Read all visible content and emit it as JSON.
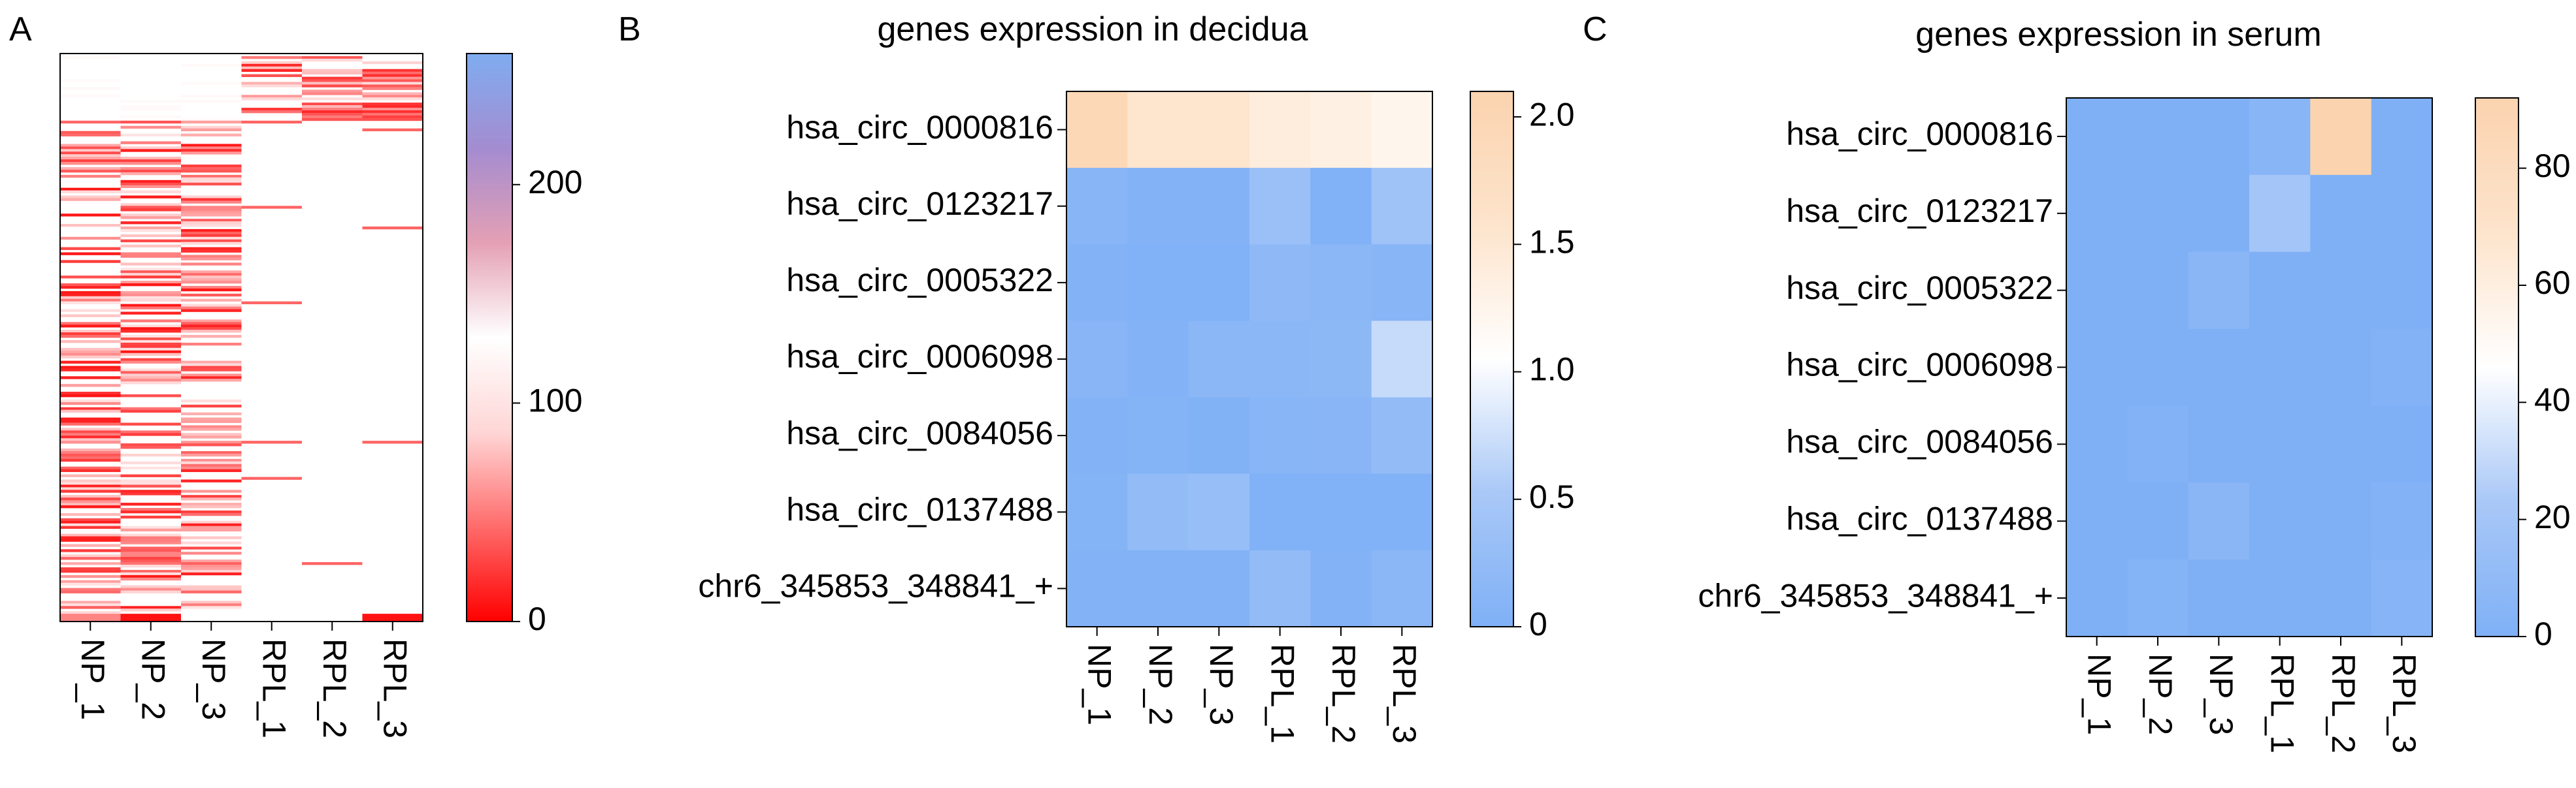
{
  "colors": {
    "panel_a_scale": [
      "#ff0000",
      "#ff6b6b",
      "#ffd6d6",
      "#ffffff",
      "#e4a0b4",
      "#a48cd0",
      "#80acf0"
    ],
    "panel_bc_scale": [
      "#7fb0f6",
      "#a9c8f7",
      "#ffffff",
      "#fde4cc",
      "#fbd3af"
    ],
    "axis": "#000000"
  },
  "chart_data": [
    {
      "type": "heatmap",
      "panel_label": "A",
      "title": "",
      "columns": [
        "NP_1",
        "NP_2",
        "NP_3",
        "RPL_1",
        "RPL_2",
        "RPL_3"
      ],
      "row_count": 220,
      "rows_note": "",
      "colorbar": {
        "min": 0,
        "max": 260,
        "ticks": [
          0,
          100,
          200
        ],
        "low_color": "#ff0000",
        "mid_color": "#ffffff",
        "high_color": "#80acf0"
      },
      "block_pattern": {
        "np_enriched_rows_fraction": [
          0.12,
          1.0
        ],
        "rpl_enriched_rows_fraction": [
          0.0,
          0.12
        ]
      }
    },
    {
      "type": "heatmap",
      "panel_label": "B",
      "title": "genes expression in decidua",
      "columns": [
        "NP_1",
        "NP_2",
        "NP_3",
        "RPL_1",
        "RPL_2",
        "RPL_3"
      ],
      "rows": [
        "hsa_circ_0000816",
        "hsa_circ_0123217",
        "hsa_circ_0005322",
        "hsa_circ_0006098",
        "hsa_circ_0084056",
        "hsa_circ_0137488",
        "chr6_345853_348841_+"
      ],
      "values": [
        [
          1.95,
          1.55,
          1.55,
          1.4,
          1.35,
          1.25
        ],
        [
          0.1,
          0.05,
          0.05,
          0.35,
          0.02,
          0.4
        ],
        [
          0.05,
          0.02,
          0.02,
          0.2,
          0.15,
          0.1
        ],
        [
          0.12,
          0.05,
          0.15,
          0.15,
          0.18,
          0.7
        ],
        [
          0.05,
          0.08,
          0.04,
          0.1,
          0.12,
          0.25
        ],
        [
          0.08,
          0.25,
          0.3,
          0.02,
          0.02,
          0.02
        ],
        [
          0.05,
          0.05,
          0.05,
          0.25,
          0.05,
          0.15
        ]
      ],
      "colorbar": {
        "min": 0,
        "max": 2.1,
        "ticks": [
          0,
          0.5,
          1.0,
          1.5,
          2.0
        ],
        "tick_labels": [
          "0",
          "0.5",
          "1.0",
          "1.5",
          "2.0"
        ]
      }
    },
    {
      "type": "heatmap",
      "panel_label": "C",
      "title": "genes expression in serum",
      "columns": [
        "NP_1",
        "NP_2",
        "NP_3",
        "RPL_1",
        "RPL_2",
        "RPL_3"
      ],
      "rows": [
        "hsa_circ_0000816",
        "hsa_circ_0123217",
        "hsa_circ_0005322",
        "hsa_circ_0006098",
        "hsa_circ_0084056",
        "hsa_circ_0137488",
        "chr6_345853_348841_+"
      ],
      "values": [
        [
          0,
          0,
          0,
          5,
          92,
          0
        ],
        [
          0,
          0,
          0,
          20,
          0,
          0
        ],
        [
          0,
          0,
          6,
          0,
          0,
          0
        ],
        [
          0,
          0,
          0,
          0,
          0,
          2
        ],
        [
          0,
          2,
          0,
          0,
          0,
          0
        ],
        [
          0,
          0,
          6,
          0,
          0,
          2
        ],
        [
          0,
          3,
          0,
          0,
          0,
          4
        ]
      ],
      "colorbar": {
        "min": 0,
        "max": 92,
        "ticks": [
          0,
          20,
          40,
          60,
          80
        ],
        "tick_labels": [
          "0",
          "20",
          "40",
          "60",
          "80"
        ]
      }
    }
  ]
}
